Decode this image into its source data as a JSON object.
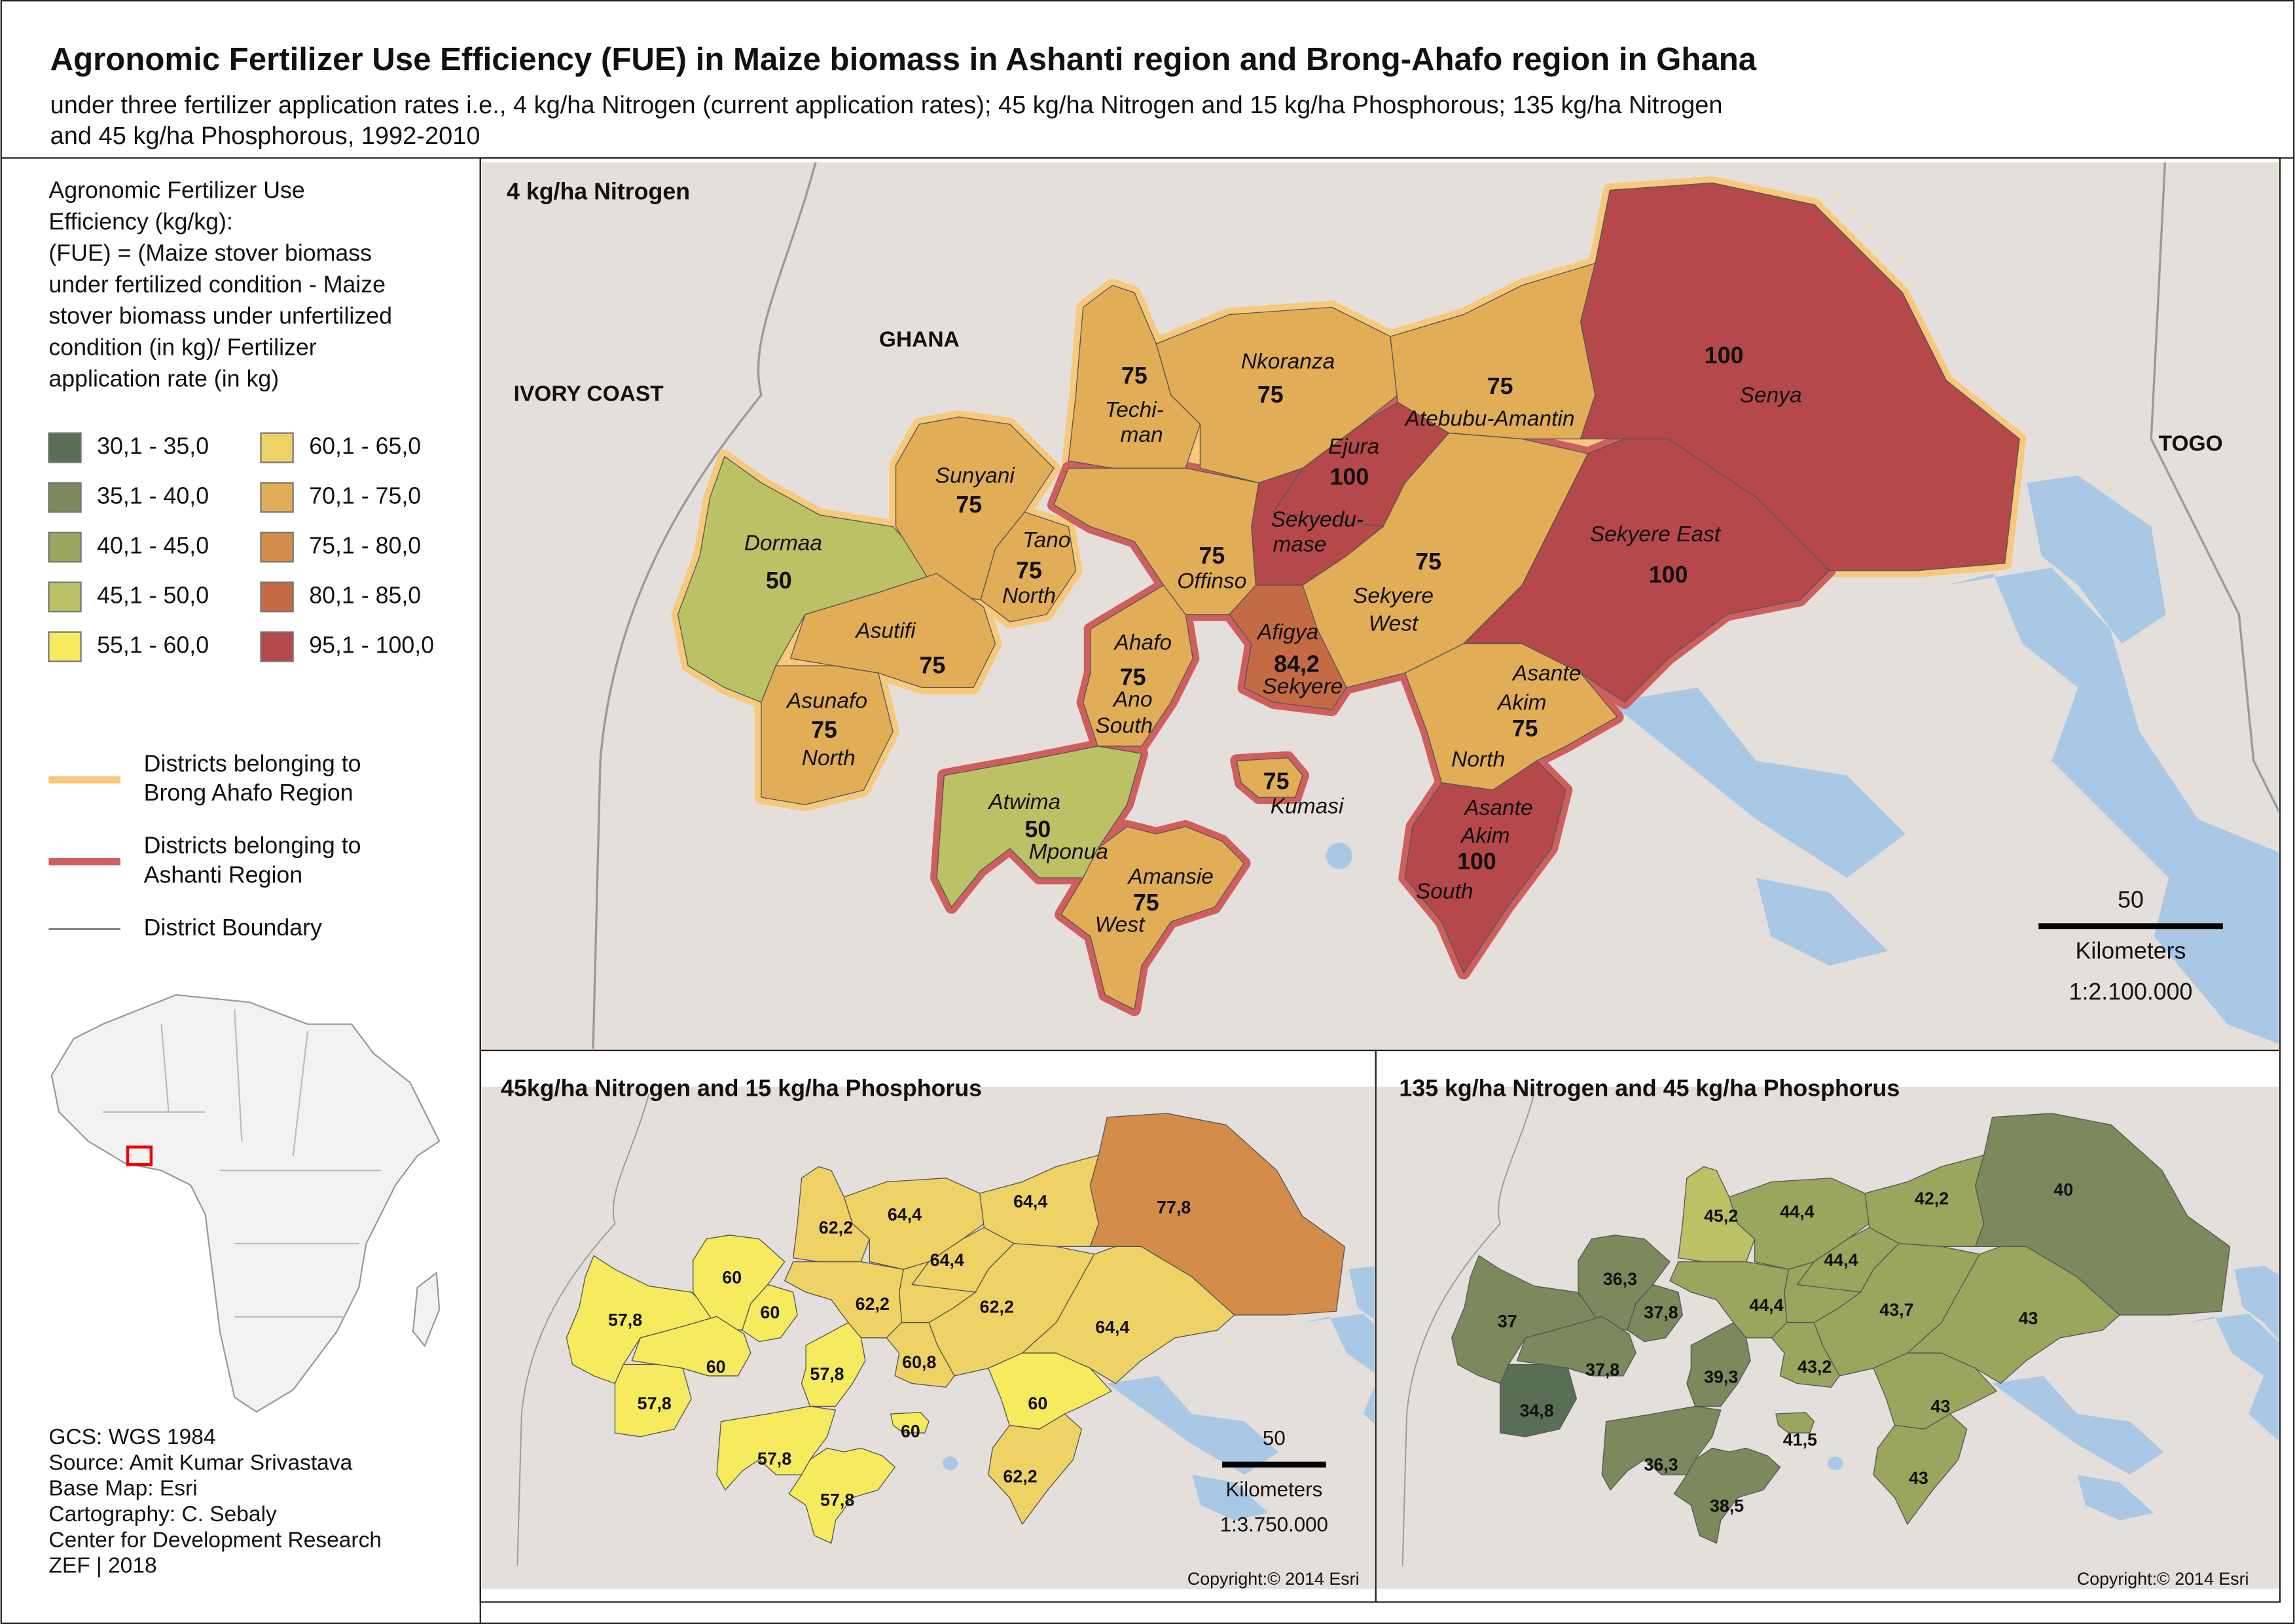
{
  "header": {
    "title": "Agronomic Fertilizer Use Efficiency (FUE) in Maize biomass in Ashanti region and Brong-Ahafo region in Ghana",
    "subtitle_lines": [
      "under three fertilizer application rates i.e., 4 kg/ha Nitrogen (current application rates); 45 kg/ha Nitrogen and 15 kg/ha Phosphorous; 135 kg/ha Nitrogen",
      "and 45 kg/ha Phosphorous, 1992-2010"
    ]
  },
  "legend": {
    "title_lines": [
      "Agronomic Fertilizer Use",
      "Efficiency (kg/kg):",
      "(FUE) = (Maize stover biomass",
      "under fertilized condition - Maize",
      "stover biomass under unfertilized",
      "condition (in kg)/ Fertilizer",
      "application rate (in kg)"
    ],
    "classes": [
      {
        "label": "30,1 - 35,0",
        "color": "#5a6e55"
      },
      {
        "label": "35,1 - 40,0",
        "color": "#7a8a5c"
      },
      {
        "label": "40,1 - 45,0",
        "color": "#9aa55e"
      },
      {
        "label": "45,1 - 50,0",
        "color": "#bcc166"
      },
      {
        "label": "55,1 - 60,0",
        "color": "#f6eb5e"
      },
      {
        "label": "60,1 - 65,0",
        "color": "#efd266"
      },
      {
        "label": "70,1 - 75,0",
        "color": "#e2ad57"
      },
      {
        "label": "75,1 - 80,0",
        "color": "#d48c4a"
      },
      {
        "label": "80,1 - 85,0",
        "color": "#c46a45"
      },
      {
        "label": "95,1 - 100,0",
        "color": "#b4484a"
      }
    ],
    "lines": [
      {
        "label_lines": [
          "Districts belonging to",
          "Brong Ahafo Region"
        ],
        "color": "#f7c97c"
      },
      {
        "label_lines": [
          "Districts belonging to",
          "Ashanti Region"
        ],
        "color": "#cf5f5f"
      },
      {
        "label_lines": [
          "District Boundary"
        ],
        "color": "#555555"
      }
    ]
  },
  "credits": [
    "GCS: WGS 1984",
    "Source: Amit Kumar Srivastava",
    "Base Map: Esri",
    "Cartography: C. Sebaly",
    "Center for Development Research",
    "ZEF | 2018"
  ],
  "maps": [
    {
      "title": "4 kg/ha Nitrogen",
      "countries": [
        "IVORY COAST",
        "GHANA",
        "TOGO"
      ],
      "districts": [
        {
          "name_lines": [
            "Dormaa"
          ],
          "value": "50",
          "color": "#bcc166"
        },
        {
          "name_lines": [
            "Sunyani"
          ],
          "value": "75",
          "color": "#e2ad57"
        },
        {
          "name_lines": [
            "Tano",
            "North"
          ],
          "value": "75",
          "color": "#e2ad57"
        },
        {
          "name_lines": [
            "Asutifi"
          ],
          "value": "75",
          "color": "#e2ad57"
        },
        {
          "name_lines": [
            "Asunafo",
            "North"
          ],
          "value": "75",
          "color": "#e2ad57"
        },
        {
          "name_lines": [
            "Techi-",
            "man"
          ],
          "value": "75",
          "color": "#e2ad57"
        },
        {
          "name_lines": [
            "Nkoranza"
          ],
          "value": "75",
          "color": "#e2ad57"
        },
        {
          "name_lines": [
            "Atebubu-Amantin"
          ],
          "value": "75",
          "color": "#e2ad57"
        },
        {
          "name_lines": [
            "Senya"
          ],
          "value": "100",
          "color": "#b4484a"
        },
        {
          "name_lines": [
            "Ejura"
          ],
          "value": "100",
          "color": "#b4484a"
        },
        {
          "name_lines": [
            "Sekyedu-",
            "mase"
          ],
          "value": null,
          "color": "#b4484a"
        },
        {
          "name_lines": [
            "Offinso"
          ],
          "value": "75",
          "color": "#e2ad57"
        },
        {
          "name_lines": [
            "Sekyere",
            "West"
          ],
          "value": "75",
          "color": "#e2ad57"
        },
        {
          "name_lines": [
            "Sekyere East"
          ],
          "value": "100",
          "color": "#b4484a"
        },
        {
          "name_lines": [
            "Ahafo",
            "Ano",
            "South"
          ],
          "value": "75",
          "color": "#e2ad57"
        },
        {
          "name_lines": [
            "Afigya",
            "Sekyere"
          ],
          "value": "84,2",
          "color": "#c46a45"
        },
        {
          "name_lines": [
            "Asante",
            "Akim",
            "North"
          ],
          "value": "75",
          "color": "#e2ad57"
        },
        {
          "name_lines": [
            "Asante",
            "Akim",
            "South"
          ],
          "value": "100",
          "color": "#b4484a"
        },
        {
          "name_lines": [
            "Atwima",
            "Mponua"
          ],
          "value": "50",
          "color": "#bcc166"
        },
        {
          "name_lines": [
            "Amansie",
            "West"
          ],
          "value": "75",
          "color": "#e2ad57"
        },
        {
          "name_lines": [
            "Kumasi"
          ],
          "value": "75",
          "color": "#e2ad57"
        }
      ],
      "scale": {
        "distance": 50,
        "unit": "Kilometers",
        "ratio": "1:2.100.000"
      }
    },
    {
      "title": "45kg/ha Nitrogen and 15 kg/ha Phosphorus",
      "districts": [
        {
          "value": "57,8",
          "color": "#f6eb5e"
        },
        {
          "value": "60",
          "color": "#f6eb5e"
        },
        {
          "value": "60",
          "color": "#f6eb5e"
        },
        {
          "value": "60",
          "color": "#f6eb5e"
        },
        {
          "value": "57,8",
          "color": "#f6eb5e"
        },
        {
          "value": "62,2",
          "color": "#efd266"
        },
        {
          "value": "64,4",
          "color": "#efd266"
        },
        {
          "value": "64,4",
          "color": "#efd266"
        },
        {
          "value": "77,8",
          "color": "#d48c4a"
        },
        {
          "value": "64,4",
          "color": "#efd266"
        },
        {
          "value": null,
          "color": "#efd266"
        },
        {
          "value": "62,2",
          "color": "#efd266"
        },
        {
          "value": "62,2",
          "color": "#efd266"
        },
        {
          "value": "64,4",
          "color": "#efd266"
        },
        {
          "value": "57,8",
          "color": "#f6eb5e"
        },
        {
          "value": "60,8",
          "color": "#efd266"
        },
        {
          "value": "60",
          "color": "#f6eb5e"
        },
        {
          "value": "62,2",
          "color": "#efd266"
        },
        {
          "value": "57,8",
          "color": "#f6eb5e"
        },
        {
          "value": "57,8",
          "color": "#f6eb5e"
        },
        {
          "value": "60",
          "color": "#f6eb5e"
        }
      ],
      "scale": {
        "distance": 50,
        "unit": "Kilometers",
        "ratio": "1:3.750.000"
      },
      "copyright": "Copyright:© 2014 Esri"
    },
    {
      "title": "135 kg/ha Nitrogen and 45 kg/ha Phosphorus",
      "districts": [
        {
          "value": "37",
          "color": "#7a8a5c"
        },
        {
          "value": "36,3",
          "color": "#7a8a5c"
        },
        {
          "value": "37,8",
          "color": "#7a8a5c"
        },
        {
          "value": "37,8",
          "color": "#7a8a5c"
        },
        {
          "value": "34,8",
          "color": "#5a6e55"
        },
        {
          "value": "45,2",
          "color": "#bcc166"
        },
        {
          "value": "44,4",
          "color": "#9aa55e"
        },
        {
          "value": "42,2",
          "color": "#9aa55e"
        },
        {
          "value": "40",
          "color": "#7a8a5c"
        },
        {
          "value": "44,4",
          "color": "#9aa55e"
        },
        {
          "value": null,
          "color": "#9aa55e"
        },
        {
          "value": "44,4",
          "color": "#9aa55e"
        },
        {
          "value": "43,7",
          "color": "#9aa55e"
        },
        {
          "value": "43",
          "color": "#9aa55e"
        },
        {
          "value": "39,3",
          "color": "#7a8a5c"
        },
        {
          "value": "43,2",
          "color": "#9aa55e"
        },
        {
          "value": "43",
          "color": "#9aa55e"
        },
        {
          "value": "43",
          "color": "#9aa55e"
        },
        {
          "value": "36,3",
          "color": "#7a8a5c"
        },
        {
          "value": "38,5",
          "color": "#7a8a5c"
        },
        {
          "value": "41,5",
          "color": "#9aa55e"
        }
      ],
      "copyright": "Copyright:© 2014 Esri"
    }
  ]
}
